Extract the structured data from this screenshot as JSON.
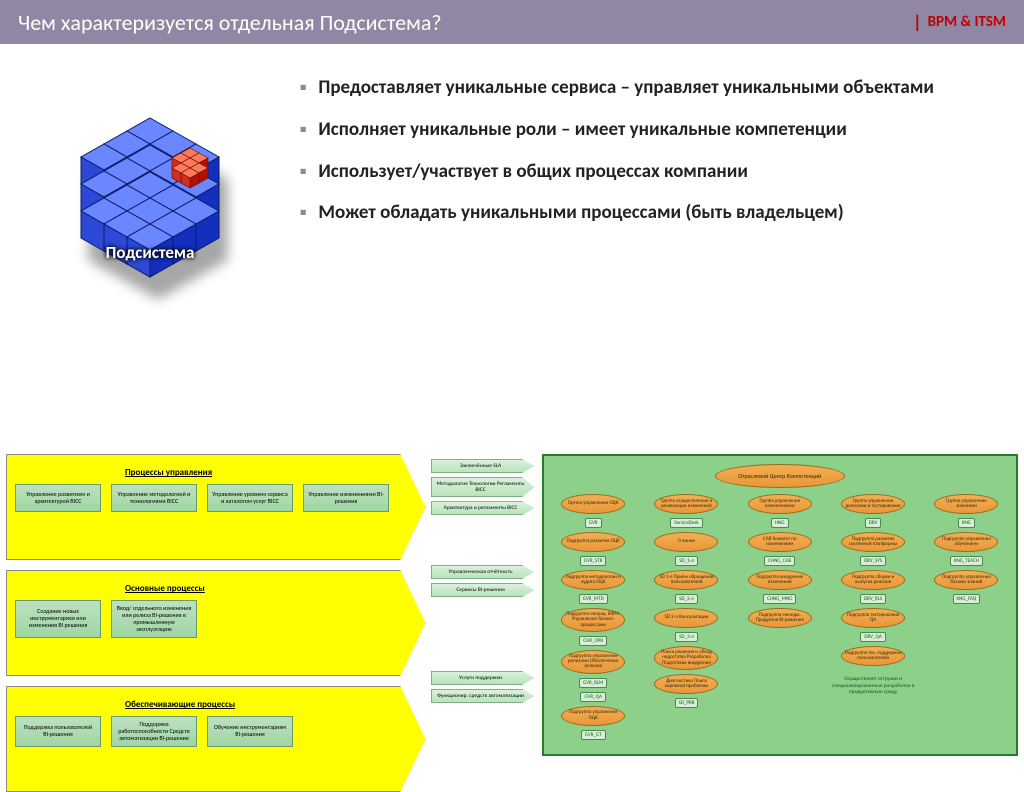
{
  "header": {
    "title": "Чем характеризуется отдельная Подсистема?",
    "brand": "BPM  &  ITSM",
    "bar_bg": "#9186a3",
    "brand_color": "#c00000"
  },
  "cube": {
    "label": "Подсистема",
    "outer_color": "#2b49d6",
    "outer_highlight": "#6a87ff",
    "inner_color": "#d22e1f",
    "inner_highlight": "#ff7a5a"
  },
  "bullets": {
    "marker": "▪",
    "items": [
      "Предоставляет уникальные сервиса – управляет уникальными объектами",
      "Исполняет уникальные роли – имеет уникальные компетенции",
      "Использует/участвует в общих процессах компании",
      "Может обладать уникальными процессами (быть владельцем)"
    ]
  },
  "left_diagram": {
    "arrow_bg": "#ffff00",
    "box_bg": "#b8e2bb",
    "rows": [
      {
        "title": "Процессы управления",
        "boxes": [
          "Управление развитием и архитектурой BICC",
          "Управление методологией и технологиями BICC",
          "Управление уровнем сервиса и каталогом услуг BICC",
          "Управление изменениями BI-решения"
        ],
        "outputs": [
          "Заключённые SLA",
          "Методология Технологии Регламенты BICC",
          "Архитектура и регламенты BICC"
        ]
      },
      {
        "title": "Основные процессы",
        "boxes": [
          "Создание новых инструментариев или изменения BI решения",
          "Ввод/ отдельного изменения или релиза BI-решения в промышленную эксплуатацию"
        ],
        "outputs": [
          "Управленческая отчётность",
          "Сервисы BI-решения"
        ]
      },
      {
        "title": "Обеспечивающие процессы",
        "boxes": [
          "Поддержка пользователей BI-решения",
          "Поддержка работоспособности Средств автоматизации BI-решения",
          "Обучение инструментариям BI-решения"
        ],
        "outputs": [
          "Услуги поддержки",
          "Функционир. средств автоматизации"
        ]
      }
    ]
  },
  "right_diagram": {
    "bg": "#8cd08a",
    "border": "#2a7a2a",
    "node_bg": "#eea245",
    "root": "Отраслевой Центр Компетенций",
    "columns": [
      {
        "head": "Группа управления ОЦК",
        "tag_top": "GVR",
        "items": [
          {
            "t": "GVR_STR",
            "n": "Подгруппа развития ОЦК"
          },
          {
            "t": "GVR_MTD",
            "n": "Подгруппа методологии и аудита ОЦК"
          },
          {
            "t": "GVR_OPR",
            "n": "Подгруппа операц. BIRM. Управление бизнес-процессами"
          },
          {
            "t": "GVR_RLM",
            "n": "Подгруппа управления релизами  Обеспечение релизов"
          },
          {
            "t": "GVR_QA",
            "n": ""
          },
          {
            "t": "GVR_GT",
            "n": "Подгруппа управления ОЦК"
          }
        ]
      },
      {
        "head": "Группа осуществления и реализации изменений",
        "tag_top": "ServiceDesk",
        "items": [
          {
            "t": "SD_1-л",
            "n": "0 линия"
          },
          {
            "t": "SD_2-л",
            "n": "SD 1-л Приём обращений пользователей"
          },
          {
            "t": "SD_3-л",
            "n": "SD 2-л Консультации"
          },
          {
            "t": "",
            "n": "Поиск решения и обход недостатка Разработка Подготовка внедрения"
          },
          {
            "t": "SD_PRB",
            "n": "Диагностика Поиск корневой проблемы"
          }
        ]
      },
      {
        "head": "Группа управления изменениями",
        "tag_top": "HNG",
        "items": [
          {
            "t": "CHNG_CAB",
            "n": "CAB Комитет по изменениям"
          },
          {
            "t": "CHNG_MNG",
            "n": "Подгруппа внедрения изменений"
          },
          {
            "t": "",
            "n": "Подгруппа менедж. Продуктов BI-решения"
          }
        ]
      },
      {
        "head": "Группа управления релизами и тестирования",
        "tag_top": "DRV",
        "items": [
          {
            "t": "DRV_SYS",
            "n": "Подгруппа развития системной платформы"
          },
          {
            "t": "DRV_RLS",
            "n": "Подгруппа сборки и выпуска релизов"
          },
          {
            "t": "DRV_QA",
            "n": "Подгруппа тестирования QA"
          },
          {
            "t": "",
            "n": "Подгруппа тех. поддержки пользователей"
          }
        ],
        "note": "Осуществляет отгрузки и специализированные разработки в продуктивную среду"
      },
      {
        "head": "Группа управления знаниями",
        "tag_top": "KNG",
        "items": [
          {
            "t": "KNG_TEACH",
            "n": "Подгруппа управления обучением"
          },
          {
            "t": "KNG_FAQ",
            "n": "Подгруппа управления базами знаний"
          }
        ]
      }
    ]
  }
}
